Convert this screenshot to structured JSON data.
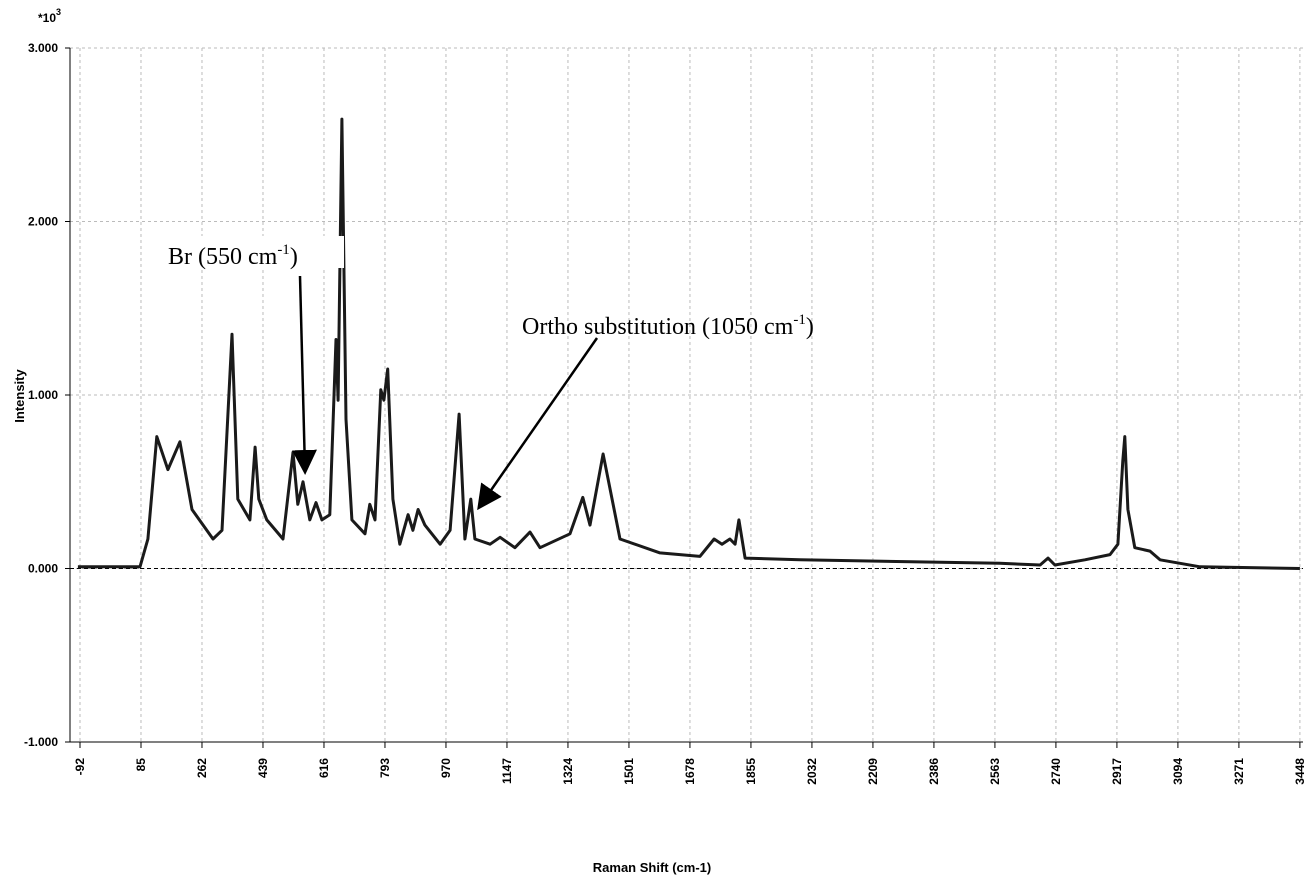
{
  "chart_data": {
    "type": "line",
    "y_scale_base": "*10",
    "y_scale_exponent": "3",
    "y_label": "Intensity",
    "x_label": "Raman Shift (cm-1)",
    "annotations": [
      {
        "text": "Br (550 cm",
        "sup": "-1",
        "end": ")"
      },
      {
        "text": "Ortho substitution (1050 cm",
        "sup": "-1",
        "end": ")"
      }
    ],
    "color": "#1a1a1a",
    "grid": true,
    "reference_line": 0,
    "xlim": [
      -121,
      3457
    ],
    "xticks": [
      -92,
      85,
      262,
      439,
      616,
      793,
      970,
      1147,
      1324,
      1501,
      1678,
      1855,
      2032,
      2209,
      2386,
      2563,
      2740,
      2917,
      3094,
      3271,
      3448
    ],
    "ylim": [
      -1,
      3
    ],
    "yticks": [
      {
        "value": 3,
        "label": "3.000"
      },
      {
        "value": 2,
        "label": "2.000"
      },
      {
        "value": 1,
        "label": "1.000"
      },
      {
        "value": 0,
        "label": "0.000"
      },
      {
        "value": -1,
        "label": "-1.000"
      }
    ],
    "x": [
      -98,
      82,
      105,
      131,
      163,
      198,
      233,
      294,
      320,
      349,
      366,
      401,
      416,
      427,
      450,
      497,
      526,
      540,
      555,
      575,
      593,
      610,
      633,
      651,
      657,
      668,
      680,
      697,
      735,
      749,
      764,
      781,
      790,
      801,
      816,
      836,
      860,
      874,
      889,
      909,
      953,
      982,
      1008,
      1025,
      1042,
      1054,
      1098,
      1127,
      1170,
      1214,
      1243,
      1330,
      1367,
      1388,
      1426,
      1446,
      1475,
      1591,
      1707,
      1748,
      1771,
      1794,
      1809,
      1820,
      1838,
      1997,
      2577,
      2694,
      2717,
      2737,
      2824,
      2897,
      2920,
      2934,
      2940,
      2949,
      2969,
      3013,
      3042,
      3158,
      3448
    ],
    "values": [
      0.01,
      0.01,
      0.17,
      0.76,
      0.57,
      0.73,
      0.34,
      0.17,
      0.22,
      1.35,
      0.4,
      0.28,
      0.7,
      0.4,
      0.28,
      0.17,
      0.67,
      0.37,
      0.5,
      0.28,
      0.38,
      0.28,
      0.31,
      1.32,
      0.97,
      2.59,
      0.86,
      0.28,
      0.2,
      0.37,
      0.28,
      1.03,
      0.97,
      1.15,
      0.4,
      0.14,
      0.31,
      0.22,
      0.34,
      0.25,
      0.14,
      0.22,
      0.89,
      0.17,
      0.4,
      0.17,
      0.14,
      0.18,
      0.12,
      0.21,
      0.12,
      0.2,
      0.41,
      0.25,
      0.66,
      0.46,
      0.17,
      0.09,
      0.07,
      0.17,
      0.14,
      0.17,
      0.14,
      0.28,
      0.06,
      0.05,
      0.03,
      0.02,
      0.06,
      0.02,
      0.05,
      0.08,
      0.14,
      0.62,
      0.76,
      0.34,
      0.12,
      0.1,
      0.05,
      0.01,
      0.0
    ]
  }
}
